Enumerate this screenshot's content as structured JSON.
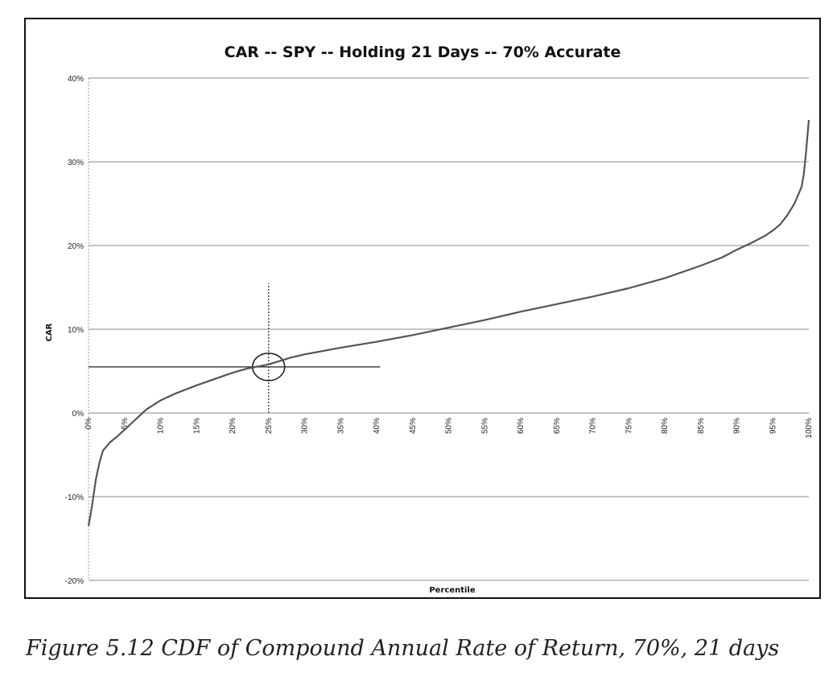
{
  "caption": "Figure 5.12  CDF of Compound Annual Rate of Return, 70%, 21 days",
  "chart_data": {
    "type": "line",
    "title": "CAR -- SPY -- Holding 21 Days -- 70% Accurate",
    "xlabel": "Percentile",
    "ylabel": "CAR",
    "xlim": [
      0,
      100
    ],
    "ylim": [
      -20,
      40
    ],
    "x_ticks": [
      "0%",
      "5%",
      "10%",
      "15%",
      "20%",
      "25%",
      "30%",
      "35%",
      "40%",
      "45%",
      "50%",
      "55%",
      "60%",
      "65%",
      "70%",
      "75%",
      "80%",
      "85%",
      "90%",
      "95%",
      "100%"
    ],
    "y_ticks": [
      "40%",
      "30%",
      "20%",
      "10%",
      "0%",
      "-10%",
      "-20%"
    ],
    "grid": "horizontal",
    "series": [
      {
        "line_color": "#555555",
        "x": [
          0,
          0.5,
          1,
          1.5,
          2,
          3,
          4,
          5,
          6,
          7,
          8,
          10,
          12,
          15,
          18,
          20,
          22,
          25,
          28,
          30,
          35,
          40,
          45,
          50,
          55,
          60,
          65,
          70,
          75,
          80,
          85,
          88,
          90,
          92,
          94,
          95,
          96,
          97,
          98,
          98.5,
          99,
          99.3,
          99.6,
          100
        ],
        "y": [
          -13.5,
          -11,
          -8,
          -6,
          -4.5,
          -3.5,
          -2.8,
          -2,
          -1.2,
          -0.4,
          0.4,
          1.5,
          2.3,
          3.3,
          4.2,
          4.8,
          5.3,
          5.8,
          6.6,
          7.0,
          7.8,
          8.5,
          9.3,
          10.2,
          11.1,
          12.1,
          13.0,
          13.9,
          14.9,
          16.1,
          17.6,
          18.6,
          19.5,
          20.3,
          21.2,
          21.8,
          22.5,
          23.6,
          25.0,
          26.0,
          27.0,
          28.5,
          31.0,
          35.0
        ]
      }
    ],
    "annotations": [
      {
        "kind": "horizontal_line",
        "y": 5.5,
        "x_range": [
          0,
          40.5
        ]
      },
      {
        "kind": "vertical_dotted_line",
        "x": 25,
        "y_range": [
          0,
          15.5
        ]
      },
      {
        "kind": "circle",
        "x": 25,
        "y": 5.5
      }
    ]
  }
}
